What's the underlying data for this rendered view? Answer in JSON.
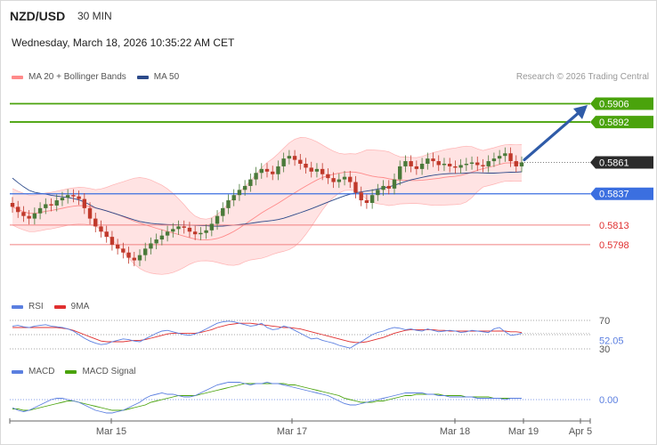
{
  "header": {
    "symbol": "NZD/USD",
    "timeframe": "30 MIN",
    "datetime": "Wednesday, March 18, 2026 10:35:22 AM CET",
    "credit": "Research © 2026 Trading Central"
  },
  "colors": {
    "resistance": "#4aa30c",
    "support": "#3b6fe0",
    "minor_support": "#f08080",
    "minor_support_text": "#e03030",
    "bollinger": "#ff8a8a",
    "bollinger_fill": "#ffe3e3",
    "ma50": "#2c4a8a",
    "candle_up": "#4a7a3a",
    "candle_down": "#c0392b",
    "arrow": "#2f5ba8",
    "rsi": "#5b7fe0",
    "rsi_ma": "#e03030",
    "macd": "#5b7fe0",
    "macd_signal": "#4aa30c",
    "last_price_tag": "#2b2b2b"
  },
  "chart_data": [
    {
      "type": "candlestick",
      "legend": [
        {
          "name": "MA 20 + Bollinger Bands",
          "color": "#ff8a8a"
        },
        {
          "name": "MA 50",
          "color": "#2c4a8a"
        }
      ],
      "ylim": [
        0.577,
        0.592
      ],
      "x_ticks": [
        "Mar 15",
        "Mar 17",
        "Mar 18",
        "Mar 19",
        "Apr 5"
      ],
      "levels": [
        {
          "value": 0.5906,
          "label": "0.5906",
          "kind": "resistance"
        },
        {
          "value": 0.5892,
          "label": "0.5892",
          "kind": "resistance"
        },
        {
          "value": 0.5861,
          "label": "0.5861",
          "kind": "last"
        },
        {
          "value": 0.5837,
          "label": "0.5837",
          "kind": "support"
        },
        {
          "value": 0.5813,
          "label": "0.5813",
          "kind": "minor"
        },
        {
          "value": 0.5798,
          "label": "0.5798",
          "kind": "minor"
        }
      ],
      "close": [
        0.5827,
        0.5823,
        0.582,
        0.5818,
        0.5822,
        0.5826,
        0.5829,
        0.5828,
        0.5832,
        0.5834,
        0.5836,
        0.5835,
        0.5833,
        0.5826,
        0.5818,
        0.5812,
        0.5808,
        0.5804,
        0.5798,
        0.5795,
        0.5792,
        0.5788,
        0.5786,
        0.579,
        0.5795,
        0.5799,
        0.5802,
        0.5805,
        0.5808,
        0.581,
        0.5812,
        0.5811,
        0.5808,
        0.5806,
        0.5807,
        0.5809,
        0.5814,
        0.582,
        0.5826,
        0.5832,
        0.5836,
        0.584,
        0.5843,
        0.5848,
        0.5853,
        0.5856,
        0.5854,
        0.5852,
        0.5858,
        0.5864,
        0.5866,
        0.5863,
        0.586,
        0.5857,
        0.5854,
        0.5856,
        0.5852,
        0.5849,
        0.5846,
        0.5848,
        0.585,
        0.5846,
        0.5838,
        0.5832,
        0.583,
        0.5836,
        0.584,
        0.5843,
        0.5841,
        0.5848,
        0.5858,
        0.5862,
        0.5858,
        0.5856,
        0.586,
        0.5864,
        0.5862,
        0.5859,
        0.586,
        0.5858,
        0.5857,
        0.5859,
        0.586,
        0.5861,
        0.5859,
        0.5858,
        0.5862,
        0.5864,
        0.5866,
        0.5868,
        0.5862,
        0.5858,
        0.5861
      ],
      "rsi": {
        "legend": [
          {
            "name": "RSI",
            "color": "#5b7fe0"
          },
          {
            "name": "9MA",
            "color": "#e03030"
          }
        ],
        "ticks": [
          70,
          30
        ],
        "ylim": [
          20,
          80
        ],
        "last_label": "52.05",
        "rsi_values": [
          62,
          63,
          61,
          60,
          62,
          63,
          64,
          62,
          61,
          60,
          58,
          55,
          50,
          45,
          41,
          38,
          36,
          37,
          40,
          42,
          44,
          43,
          41,
          40,
          44,
          48,
          52,
          55,
          56,
          54,
          52,
          50,
          49,
          51,
          54,
          58,
          62,
          66,
          68,
          69,
          68,
          66,
          64,
          62,
          63,
          66,
          60,
          57,
          58,
          62,
          60,
          56,
          52,
          48,
          44,
          45,
          42,
          40,
          38,
          35,
          33,
          31,
          36,
          40,
          45,
          50,
          53,
          55,
          58,
          60,
          59,
          57,
          58,
          56,
          55,
          58,
          56,
          54,
          55,
          56,
          55,
          53,
          54,
          56,
          55,
          54,
          53,
          58,
          60,
          54,
          49,
          50,
          52.05
        ],
        "ma_values": [
          60,
          60,
          60,
          60,
          60,
          60,
          60,
          60,
          60,
          59,
          58,
          56,
          53,
          50,
          47,
          44,
          41,
          40,
          40,
          40,
          40,
          41,
          42,
          42,
          43,
          45,
          47,
          49,
          51,
          52,
          52,
          52,
          52,
          52,
          53,
          55,
          57,
          60,
          62,
          64,
          65,
          66,
          66,
          66,
          65,
          64,
          63,
          62,
          61,
          60,
          60,
          59,
          58,
          56,
          54,
          52,
          50,
          48,
          46,
          44,
          42,
          40,
          39,
          39,
          40,
          42,
          44,
          46,
          49,
          52,
          54,
          56,
          57,
          57,
          57,
          57,
          57,
          56,
          56,
          55,
          55,
          55,
          55,
          55,
          55,
          55,
          55,
          55,
          55,
          55,
          54,
          54,
          53
        ]
      },
      "macd": {
        "legend": [
          {
            "name": "MACD",
            "color": "#5b7fe0"
          },
          {
            "name": "MACD Signal",
            "color": "#4aa30c"
          }
        ],
        "zero_label": "0.00",
        "ylim": [
          -0.0014,
          0.0016
        ],
        "macd_values": [
          -0.0006,
          -0.0008,
          -0.0009,
          -0.0008,
          -0.0006,
          -0.0004,
          -0.0002,
          0.0,
          0.0001,
          0.0001,
          0.0,
          -0.0001,
          -0.0002,
          -0.0004,
          -0.0006,
          -0.0008,
          -0.0009,
          -0.001,
          -0.001,
          -0.0009,
          -0.0008,
          -0.0006,
          -0.0004,
          -0.0002,
          0.0001,
          0.0003,
          0.0004,
          0.0005,
          0.0004,
          0.0004,
          0.0003,
          0.0002,
          0.0002,
          0.0003,
          0.0005,
          0.0007,
          0.0009,
          0.0011,
          0.0012,
          0.0013,
          0.0013,
          0.0013,
          0.0012,
          0.0011,
          0.0012,
          0.0012,
          0.0013,
          0.0012,
          0.0012,
          0.0011,
          0.001,
          0.0009,
          0.0008,
          0.0007,
          0.0006,
          0.0005,
          0.0004,
          0.0003,
          0.0001,
          -0.0001,
          -0.0003,
          -0.0004,
          -0.0004,
          -0.0003,
          -0.0002,
          -0.0001,
          0.0,
          0.0001,
          0.0002,
          0.0003,
          0.0004,
          0.0005,
          0.0005,
          0.0005,
          0.0005,
          0.0004,
          0.0004,
          0.0003,
          0.0003,
          0.0002,
          0.0002,
          0.0002,
          0.0002,
          0.0002,
          0.0001,
          0.0001,
          0.0001,
          0.0001,
          0.0001,
          0.0,
          0.0001,
          0.0001,
          0.0001
        ],
        "signal_values": [
          -0.0007,
          -0.0007,
          -0.0008,
          -0.0008,
          -0.0007,
          -0.0006,
          -0.0005,
          -0.0004,
          -0.0003,
          -0.0002,
          -0.0001,
          -0.0001,
          -0.0002,
          -0.0003,
          -0.0004,
          -0.0005,
          -0.0006,
          -0.0007,
          -0.0008,
          -0.0008,
          -0.0008,
          -0.0007,
          -0.0006,
          -0.0005,
          -0.0004,
          -0.0002,
          -0.0001,
          0.0,
          0.0001,
          0.0002,
          0.0003,
          0.0003,
          0.0003,
          0.0003,
          0.0004,
          0.0005,
          0.0006,
          0.0007,
          0.0008,
          0.0009,
          0.001,
          0.0011,
          0.0012,
          0.0012,
          0.0012,
          0.0012,
          0.0012,
          0.0012,
          0.0012,
          0.0012,
          0.0011,
          0.0011,
          0.001,
          0.0009,
          0.0008,
          0.0007,
          0.0006,
          0.0005,
          0.0004,
          0.0003,
          0.0001,
          0.0,
          -0.0001,
          -0.0002,
          -0.0002,
          -0.0002,
          -0.0001,
          -0.0001,
          0.0,
          0.0001,
          0.0002,
          0.0003,
          0.0003,
          0.0004,
          0.0004,
          0.0004,
          0.0004,
          0.0004,
          0.0003,
          0.0003,
          0.0003,
          0.0003,
          0.0002,
          0.0002,
          0.0002,
          0.0002,
          0.0002,
          0.0001,
          0.0001,
          0.0001,
          0.0001,
          0.0001,
          0.0001
        ]
      }
    }
  ]
}
